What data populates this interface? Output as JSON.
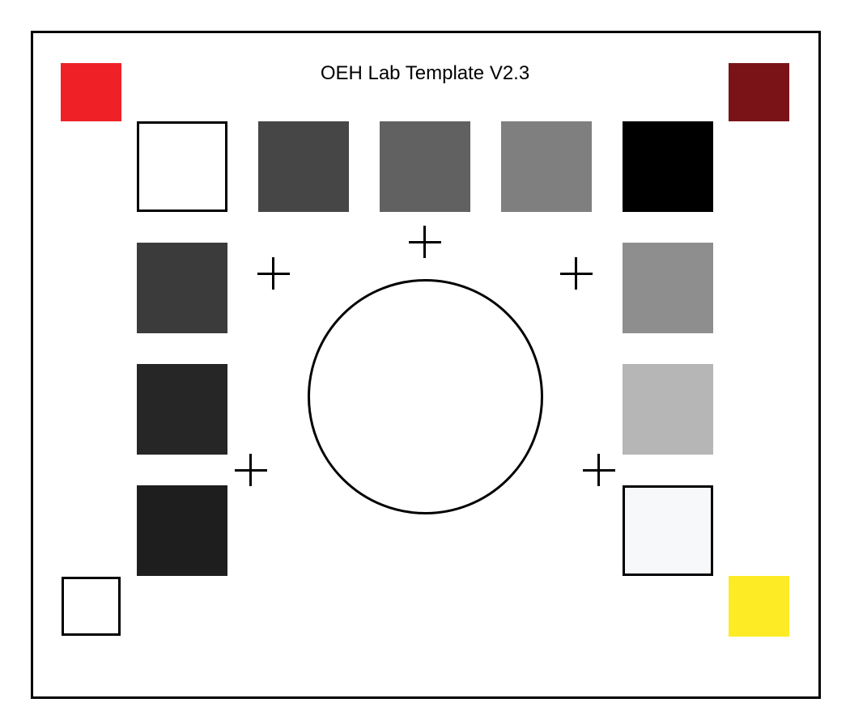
{
  "title": "OEH Lab Template V2.3",
  "colors": {
    "corner_top_left": "#EF2126",
    "corner_top_right": "#7A1317",
    "corner_bottom_left": "#FFFFFF",
    "corner_bottom_right": "#FCEB25",
    "top_row": [
      "#FFFFFF",
      "#464646",
      "#616161",
      "#7F7F7F",
      "#000000"
    ],
    "left_column": [
      "#3B3B3B",
      "#262626",
      "#1E1E1E"
    ],
    "right_column": [
      "#8E8E8E",
      "#B6B6B6",
      "#F7F8FA"
    ]
  }
}
